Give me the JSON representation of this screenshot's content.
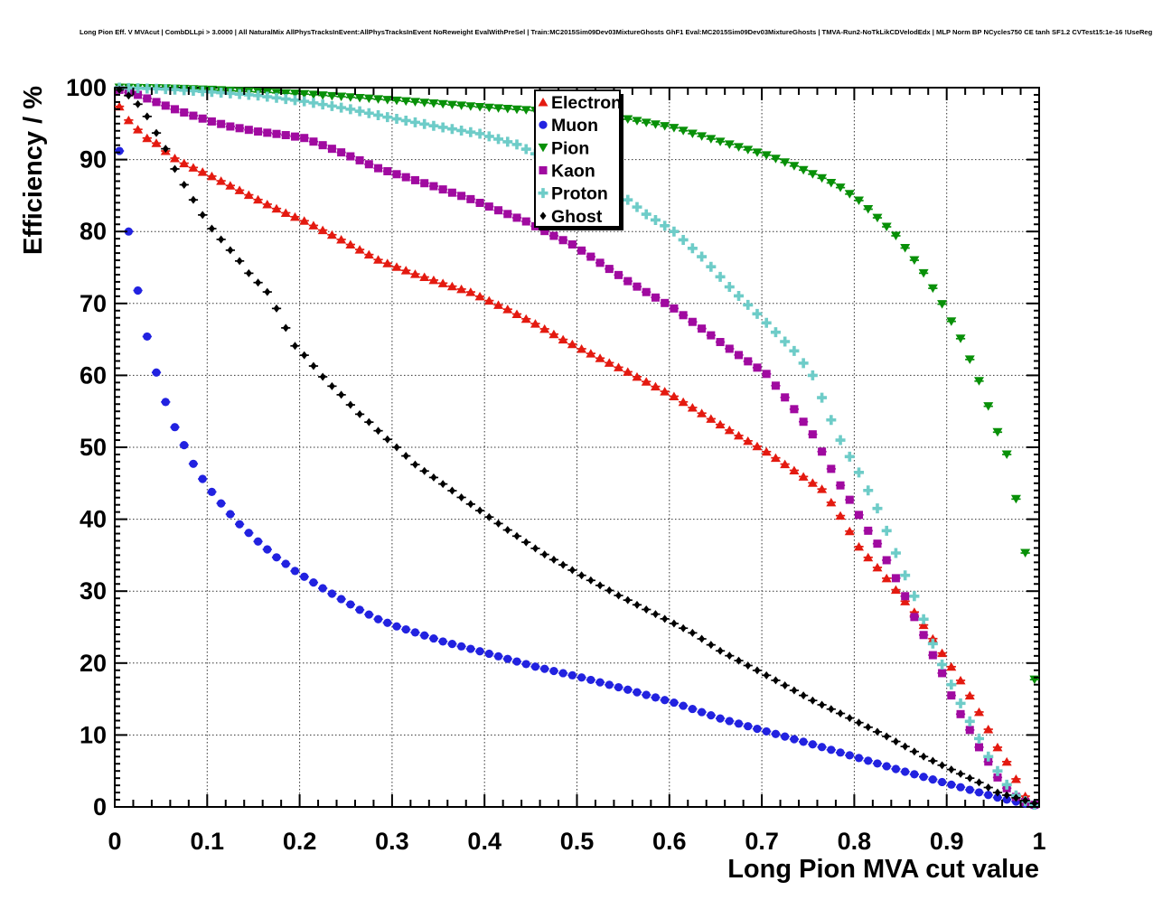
{
  "title": "Long Pion Eff. V MVAcut | CombDLLpi > 3.0000 | All NaturalMix AllPhysTracksInEvent:AllPhysTracksInEvent NoReweight EvalWithPreSel | Train:MC2015Sim09Dev03MixtureGhosts GhF1 Eval:MC2015Sim09Dev03MixtureGhosts | TMVA-Run2-NoTkLikCDVelodEdx | MLP Norm BP NCycles750 CE tanh SF1.2 CVTest15:1e-16 !UseReg",
  "axes": {
    "x_title": "Long Pion MVA cut value",
    "y_title": "Efficiency / %",
    "x_tick_labels": [
      "0",
      "0.1",
      "0.2",
      "0.3",
      "0.4",
      "0.5",
      "0.6",
      "0.7",
      "0.8",
      "0.9",
      "1"
    ],
    "y_tick_labels": [
      "0",
      "10",
      "20",
      "30",
      "40",
      "50",
      "60",
      "70",
      "80",
      "90",
      "100"
    ],
    "x_range": [
      0,
      1
    ],
    "y_range": [
      0,
      100
    ],
    "grid": "dotted-on-major-divisions",
    "tick_style": "inside-mirrored"
  },
  "legend": {
    "position": "top-center",
    "entries": [
      "Electron",
      "Muon",
      "Pion",
      "Kaon",
      "Proton",
      "Ghost"
    ]
  },
  "chart_data": {
    "type": "scatter",
    "title": "Long Pion Eff. V MVAcut",
    "xlabel": "Long Pion MVA cut value",
    "ylabel": "Efficiency / %",
    "xlim": [
      0,
      1
    ],
    "ylim": [
      0,
      100
    ],
    "marker_x_start": 0.005,
    "marker_x_step": 0.01,
    "n_bins": 100,
    "series": [
      {
        "name": "Electron",
        "color": "#e41a10",
        "marker": "triangle-up",
        "points": [
          [
            0.005,
            97.4
          ],
          [
            0.015,
            95.5
          ],
          [
            0.025,
            94.2
          ],
          [
            0.035,
            93.0
          ],
          [
            0.045,
            92.3
          ],
          [
            0.055,
            91.2
          ],
          [
            0.065,
            90.2
          ],
          [
            0.075,
            89.5
          ],
          [
            0.085,
            88.9
          ],
          [
            0.095,
            88.3
          ],
          [
            0.105,
            87.7
          ],
          [
            0.125,
            86.4
          ],
          [
            0.145,
            85.1
          ],
          [
            0.165,
            83.8
          ],
          [
            0.185,
            82.6
          ],
          [
            0.205,
            81.5
          ],
          [
            0.245,
            78.9
          ],
          [
            0.285,
            76.1
          ],
          [
            0.325,
            74.1
          ],
          [
            0.365,
            72.4
          ],
          [
            0.385,
            71.6
          ],
          [
            0.425,
            69.2
          ],
          [
            0.455,
            67.2
          ],
          [
            0.485,
            65.0
          ],
          [
            0.525,
            62.4
          ],
          [
            0.555,
            60.5
          ],
          [
            0.605,
            57.1
          ],
          [
            0.665,
            52.4
          ],
          [
            0.705,
            49.4
          ],
          [
            0.735,
            46.8
          ],
          [
            0.765,
            44.2
          ],
          [
            0.785,
            40.5
          ],
          [
            0.805,
            36.2
          ],
          [
            0.815,
            34.7
          ],
          [
            0.825,
            33.3
          ],
          [
            0.835,
            31.8
          ],
          [
            0.845,
            30.2
          ],
          [
            0.855,
            28.6
          ],
          [
            0.865,
            27.1
          ],
          [
            0.875,
            25.3
          ],
          [
            0.885,
            23.4
          ],
          [
            0.895,
            21.4
          ],
          [
            0.905,
            19.5
          ],
          [
            0.915,
            17.6
          ],
          [
            0.925,
            15.5
          ],
          [
            0.935,
            13.2
          ],
          [
            0.945,
            10.8
          ],
          [
            0.955,
            8.3
          ],
          [
            0.965,
            6.3
          ],
          [
            0.975,
            3.9
          ],
          [
            0.985,
            1.5
          ],
          [
            0.995,
            0.5
          ]
        ]
      },
      {
        "name": "Muon",
        "color": "#2222e0",
        "marker": "circle",
        "points": [
          [
            0.005,
            91.2
          ],
          [
            0.015,
            80.0
          ],
          [
            0.025,
            71.8
          ],
          [
            0.035,
            65.4
          ],
          [
            0.045,
            60.4
          ],
          [
            0.055,
            56.3
          ],
          [
            0.065,
            52.8
          ],
          [
            0.075,
            50.3
          ],
          [
            0.085,
            47.7
          ],
          [
            0.095,
            45.6
          ],
          [
            0.105,
            43.8
          ],
          [
            0.115,
            42.2
          ],
          [
            0.125,
            40.7
          ],
          [
            0.135,
            39.3
          ],
          [
            0.145,
            38.1
          ],
          [
            0.155,
            36.9
          ],
          [
            0.165,
            35.8
          ],
          [
            0.175,
            34.7
          ],
          [
            0.185,
            33.8
          ],
          [
            0.195,
            32.8
          ],
          [
            0.205,
            32.0
          ],
          [
            0.225,
            30.4
          ],
          [
            0.245,
            28.9
          ],
          [
            0.265,
            27.4
          ],
          [
            0.285,
            26.1
          ],
          [
            0.305,
            25.1
          ],
          [
            0.355,
            23.0
          ],
          [
            0.405,
            21.3
          ],
          [
            0.455,
            19.5
          ],
          [
            0.505,
            18.0
          ],
          [
            0.555,
            16.3
          ],
          [
            0.605,
            14.5
          ],
          [
            0.655,
            12.3
          ],
          [
            0.705,
            10.5
          ],
          [
            0.755,
            8.7
          ],
          [
            0.805,
            6.8
          ],
          [
            0.855,
            4.9
          ],
          [
            0.905,
            3.1
          ],
          [
            0.955,
            1.3
          ],
          [
            0.995,
            0.2
          ]
        ]
      },
      {
        "name": "Pion",
        "color": "#089008",
        "marker": "triangle-down",
        "points": [
          [
            0.005,
            100
          ],
          [
            0.055,
            99.9
          ],
          [
            0.105,
            99.7
          ],
          [
            0.155,
            99.4
          ],
          [
            0.205,
            99.1
          ],
          [
            0.305,
            98.2
          ],
          [
            0.405,
            97.2
          ],
          [
            0.455,
            96.8
          ],
          [
            0.505,
            96.3
          ],
          [
            0.555,
            95.6
          ],
          [
            0.605,
            94.4
          ],
          [
            0.625,
            93.6
          ],
          [
            0.665,
            92.1
          ],
          [
            0.705,
            90.6
          ],
          [
            0.735,
            89.1
          ],
          [
            0.765,
            87.4
          ],
          [
            0.785,
            86.1
          ],
          [
            0.805,
            84.3
          ],
          [
            0.825,
            81.9
          ],
          [
            0.845,
            79.4
          ],
          [
            0.865,
            76.0
          ],
          [
            0.875,
            74.2
          ],
          [
            0.885,
            72.1
          ],
          [
            0.895,
            69.9
          ],
          [
            0.905,
            67.5
          ],
          [
            0.915,
            65.1
          ],
          [
            0.925,
            62.2
          ],
          [
            0.935,
            59.2
          ],
          [
            0.945,
            55.7
          ],
          [
            0.955,
            52.1
          ],
          [
            0.965,
            49.0
          ],
          [
            0.975,
            42.8
          ],
          [
            0.985,
            35.3
          ],
          [
            0.995,
            17.7
          ]
        ]
      },
      {
        "name": "Kaon",
        "color": "#a00aa0",
        "marker": "square",
        "points": [
          [
            0.005,
            99.7
          ],
          [
            0.025,
            99.0
          ],
          [
            0.045,
            98.0
          ],
          [
            0.065,
            97.0
          ],
          [
            0.085,
            96.1
          ],
          [
            0.105,
            95.3
          ],
          [
            0.125,
            94.6
          ],
          [
            0.155,
            93.9
          ],
          [
            0.185,
            93.4
          ],
          [
            0.205,
            93.0
          ],
          [
            0.245,
            91.0
          ],
          [
            0.285,
            88.8
          ],
          [
            0.345,
            86.3
          ],
          [
            0.385,
            84.5
          ],
          [
            0.445,
            81.4
          ],
          [
            0.475,
            79.4
          ],
          [
            0.495,
            78.2
          ],
          [
            0.555,
            73.1
          ],
          [
            0.605,
            69.3
          ],
          [
            0.665,
            63.7
          ],
          [
            0.705,
            60.2
          ],
          [
            0.735,
            55.3
          ],
          [
            0.755,
            51.8
          ],
          [
            0.775,
            47.0
          ],
          [
            0.785,
            44.7
          ],
          [
            0.795,
            42.7
          ],
          [
            0.805,
            40.6
          ],
          [
            0.815,
            38.4
          ],
          [
            0.825,
            36.6
          ],
          [
            0.835,
            34.3
          ],
          [
            0.845,
            31.8
          ],
          [
            0.855,
            29.3
          ],
          [
            0.865,
            26.4
          ],
          [
            0.875,
            23.9
          ],
          [
            0.885,
            21.1
          ],
          [
            0.895,
            18.6
          ],
          [
            0.905,
            15.5
          ],
          [
            0.915,
            12.9
          ],
          [
            0.925,
            10.7
          ],
          [
            0.935,
            8.3
          ],
          [
            0.945,
            6.3
          ],
          [
            0.955,
            4.1
          ],
          [
            0.965,
            2.6
          ],
          [
            0.975,
            1.4
          ],
          [
            0.985,
            0.7
          ],
          [
            0.995,
            0.3
          ]
        ]
      },
      {
        "name": "Proton",
        "color": "#6eccc8",
        "marker": "plus",
        "points": [
          [
            0.005,
            100
          ],
          [
            0.055,
            99.8
          ],
          [
            0.105,
            99.4
          ],
          [
            0.155,
            98.9
          ],
          [
            0.205,
            98.1
          ],
          [
            0.255,
            97.0
          ],
          [
            0.295,
            95.9
          ],
          [
            0.345,
            94.7
          ],
          [
            0.395,
            93.6
          ],
          [
            0.435,
            92.1
          ],
          [
            0.455,
            90.8
          ],
          [
            0.505,
            87.8
          ],
          [
            0.525,
            86.4
          ],
          [
            0.555,
            84.4
          ],
          [
            0.575,
            82.4
          ],
          [
            0.605,
            80.0
          ],
          [
            0.635,
            76.5
          ],
          [
            0.665,
            72.3
          ],
          [
            0.705,
            67.3
          ],
          [
            0.735,
            63.4
          ],
          [
            0.755,
            60.0
          ],
          [
            0.775,
            53.8
          ],
          [
            0.785,
            51.0
          ],
          [
            0.795,
            48.7
          ],
          [
            0.805,
            46.5
          ],
          [
            0.815,
            44.0
          ],
          [
            0.825,
            41.5
          ],
          [
            0.835,
            38.4
          ],
          [
            0.845,
            35.3
          ],
          [
            0.855,
            32.2
          ],
          [
            0.865,
            29.3
          ],
          [
            0.875,
            26.1
          ],
          [
            0.885,
            22.7
          ],
          [
            0.895,
            19.8
          ],
          [
            0.905,
            17.0
          ],
          [
            0.915,
            14.4
          ],
          [
            0.925,
            11.9
          ],
          [
            0.935,
            9.5
          ],
          [
            0.945,
            7.0
          ],
          [
            0.955,
            5.0
          ],
          [
            0.965,
            3.1
          ],
          [
            0.975,
            1.6
          ],
          [
            0.985,
            0.8
          ],
          [
            0.995,
            0.3
          ]
        ]
      },
      {
        "name": "Ghost",
        "color": "#000000",
        "marker": "diamond",
        "points": [
          [
            0.005,
            99.7
          ],
          [
            0.015,
            98.9
          ],
          [
            0.025,
            97.7
          ],
          [
            0.035,
            96.0
          ],
          [
            0.045,
            93.7
          ],
          [
            0.055,
            91.5
          ],
          [
            0.065,
            88.7
          ],
          [
            0.075,
            86.5
          ],
          [
            0.085,
            84.4
          ],
          [
            0.095,
            82.3
          ],
          [
            0.105,
            80.4
          ],
          [
            0.115,
            78.9
          ],
          [
            0.125,
            77.4
          ],
          [
            0.135,
            75.9
          ],
          [
            0.145,
            74.2
          ],
          [
            0.155,
            72.9
          ],
          [
            0.165,
            71.6
          ],
          [
            0.175,
            69.3
          ],
          [
            0.185,
            66.6
          ],
          [
            0.195,
            64.1
          ],
          [
            0.205,
            62.8
          ],
          [
            0.215,
            61.3
          ],
          [
            0.225,
            59.8
          ],
          [
            0.235,
            58.5
          ],
          [
            0.245,
            57.3
          ],
          [
            0.255,
            55.9
          ],
          [
            0.265,
            54.6
          ],
          [
            0.275,
            53.5
          ],
          [
            0.285,
            52.3
          ],
          [
            0.295,
            51.1
          ],
          [
            0.305,
            50.0
          ],
          [
            0.325,
            47.6
          ],
          [
            0.355,
            44.9
          ],
          [
            0.385,
            42.1
          ],
          [
            0.425,
            38.5
          ],
          [
            0.465,
            35.1
          ],
          [
            0.505,
            32.2
          ],
          [
            0.545,
            29.4
          ],
          [
            0.585,
            26.8
          ],
          [
            0.625,
            24.2
          ],
          [
            0.655,
            21.7
          ],
          [
            0.705,
            18.3
          ],
          [
            0.755,
            14.8
          ],
          [
            0.785,
            13.0
          ],
          [
            0.835,
            9.8
          ],
          [
            0.875,
            7.0
          ],
          [
            0.905,
            5.2
          ],
          [
            0.935,
            3.4
          ],
          [
            0.955,
            2.0
          ],
          [
            0.985,
            0.9
          ],
          [
            0.995,
            0.5
          ]
        ]
      }
    ]
  }
}
